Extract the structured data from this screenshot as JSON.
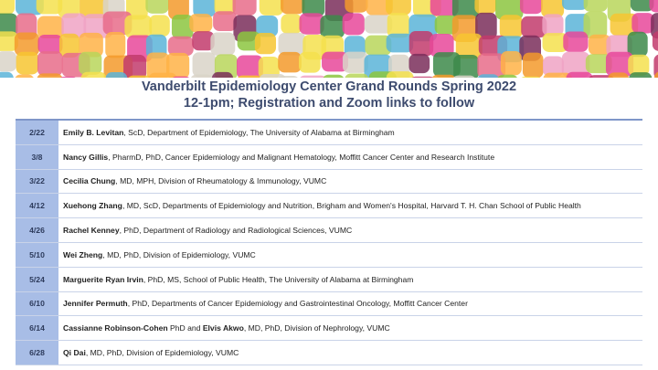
{
  "header": {
    "title": [
      "Vanderbilt Epidemiology Center Grand Rounds Spring 2022",
      "12-1pm; Registration and Zoom links to follow"
    ]
  },
  "table": {
    "rows": [
      {
        "date": "2/22",
        "speaker": [
          {
            "text": "Emily B. Levitan",
            "bold": true
          },
          {
            "text": ", ScD, Department of Epidemiology, The University of Alabama at Birmingham"
          }
        ]
      },
      {
        "date": "3/8",
        "speaker": [
          {
            "text": "Nancy Gillis",
            "bold": true
          },
          {
            "text": ", PharmD, PhD, Cancer Epidemiology and Malignant Hematology, Moffitt Cancer Center and Research Institute"
          }
        ]
      },
      {
        "date": "3/22",
        "speaker": [
          {
            "text": "Cecilia Chung",
            "bold": true
          },
          {
            "text": ", MD, MPH, Division of Rheumatology & Immunology, VUMC"
          }
        ]
      },
      {
        "date": "4/12",
        "speaker": [
          {
            "text": "Xuehong Zhang",
            "bold": true
          },
          {
            "text": ", MD, ScD, Departments of Epidemiology and Nutrition, Brigham and Women's Hospital, Harvard T. H. Chan School of Public Health"
          }
        ]
      },
      {
        "date": "4/26",
        "speaker": [
          {
            "text": "Rachel Kenney",
            "bold": true
          },
          {
            "text": ", PhD, Department of Radiology and Radiological Sciences, VUMC"
          }
        ]
      },
      {
        "date": "5/10",
        "speaker": [
          {
            "text": "Wei Zheng",
            "bold": true
          },
          {
            "text": ", MD, PhD, Division of Epidemiology, VUMC"
          }
        ]
      },
      {
        "date": "5/24",
        "speaker": [
          {
            "text": "Marguerite Ryan Irvin",
            "bold": true
          },
          {
            "text": ", PhD, MS, School of Public Health, The University of Alabama at Birmingham"
          }
        ]
      },
      {
        "date": "6/10",
        "speaker": [
          {
            "text": "Jennifer Permuth",
            "bold": true
          },
          {
            "text": ", PhD, Departments of Cancer Epidemiology and Gastrointestinal Oncology, Moffitt Cancer Center"
          }
        ]
      },
      {
        "date": "6/14",
        "speaker": [
          {
            "text": "Cassianne Robinson-Cohen",
            "bold": true
          },
          {
            "text": " PhD and "
          },
          {
            "text": "Elvis Akwo",
            "bold": true
          },
          {
            "text": ", MD, PhD, Division of Nephrology, VUMC"
          }
        ]
      },
      {
        "date": "6/28",
        "speaker": [
          {
            "text": "Qi Dai",
            "bold": true
          },
          {
            "text": ", MD, PhD, Division of Epidemiology, VUMC"
          }
        ]
      }
    ]
  }
}
